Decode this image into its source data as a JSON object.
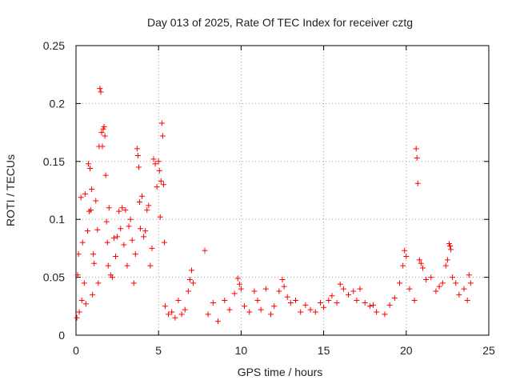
{
  "chart_data": {
    "type": "scatter",
    "title": "Day 013 of 2025, Rate Of TEC Index for receiver cztg",
    "xlabel": "GPS time / hours",
    "ylabel": "ROTI / TECUs",
    "xlim": [
      0,
      25
    ],
    "ylim": [
      0,
      0.25
    ],
    "xticks": [
      "0",
      "5",
      "10",
      "15",
      "20",
      "25"
    ],
    "yticks": [
      "0",
      "0.05",
      "0.1",
      "0.15",
      "0.2",
      "0.25"
    ],
    "grid": true,
    "marker": "+",
    "color": "#ff0000",
    "series": [
      {
        "name": "",
        "points": [
          [
            0.05,
            0.015
          ],
          [
            0.1,
            0.052
          ],
          [
            0.15,
            0.07
          ],
          [
            0.2,
            0.02
          ],
          [
            0.3,
            0.119
          ],
          [
            0.35,
            0.03
          ],
          [
            0.4,
            0.08
          ],
          [
            0.5,
            0.045
          ],
          [
            0.55,
            0.122
          ],
          [
            0.6,
            0.027
          ],
          [
            0.7,
            0.09
          ],
          [
            0.75,
            0.148
          ],
          [
            0.8,
            0.107
          ],
          [
            0.85,
            0.144
          ],
          [
            0.9,
            0.108
          ],
          [
            0.95,
            0.126
          ],
          [
            1.0,
            0.035
          ],
          [
            1.05,
            0.07
          ],
          [
            1.1,
            0.062
          ],
          [
            1.2,
            0.116
          ],
          [
            1.3,
            0.091
          ],
          [
            1.35,
            0.045
          ],
          [
            1.4,
            0.163
          ],
          [
            1.45,
            0.213
          ],
          [
            1.5,
            0.21
          ],
          [
            1.55,
            0.175
          ],
          [
            1.6,
            0.163
          ],
          [
            1.65,
            0.178
          ],
          [
            1.7,
            0.18
          ],
          [
            1.75,
            0.172
          ],
          [
            1.8,
            0.138
          ],
          [
            1.85,
            0.098
          ],
          [
            1.9,
            0.08
          ],
          [
            1.95,
            0.06
          ],
          [
            2.0,
            0.11
          ],
          [
            2.1,
            0.052
          ],
          [
            2.2,
            0.05
          ],
          [
            2.3,
            0.084
          ],
          [
            2.4,
            0.068
          ],
          [
            2.5,
            0.085
          ],
          [
            2.6,
            0.107
          ],
          [
            2.7,
            0.092
          ],
          [
            2.8,
            0.11
          ],
          [
            2.9,
            0.078
          ],
          [
            3.0,
            0.108
          ],
          [
            3.1,
            0.06
          ],
          [
            3.2,
            0.094
          ],
          [
            3.3,
            0.1
          ],
          [
            3.4,
            0.082
          ],
          [
            3.5,
            0.045
          ],
          [
            3.6,
            0.07
          ],
          [
            3.7,
            0.161
          ],
          [
            3.75,
            0.155
          ],
          [
            3.8,
            0.145
          ],
          [
            3.85,
            0.115
          ],
          [
            3.9,
            0.092
          ],
          [
            4.0,
            0.12
          ],
          [
            4.1,
            0.085
          ],
          [
            4.2,
            0.09
          ],
          [
            4.3,
            0.108
          ],
          [
            4.4,
            0.112
          ],
          [
            4.5,
            0.06
          ],
          [
            4.6,
            0.075
          ],
          [
            4.7,
            0.152
          ],
          [
            4.8,
            0.148
          ],
          [
            4.9,
            0.128
          ],
          [
            5.0,
            0.15
          ],
          [
            5.05,
            0.142
          ],
          [
            5.1,
            0.102
          ],
          [
            5.15,
            0.133
          ],
          [
            5.2,
            0.183
          ],
          [
            5.25,
            0.172
          ],
          [
            5.3,
            0.13
          ],
          [
            5.35,
            0.08
          ],
          [
            5.4,
            0.025
          ],
          [
            5.6,
            0.018
          ],
          [
            5.8,
            0.02
          ],
          [
            6.0,
            0.015
          ],
          [
            6.2,
            0.03
          ],
          [
            6.4,
            0.018
          ],
          [
            6.6,
            0.022
          ],
          [
            6.8,
            0.038
          ],
          [
            6.9,
            0.048
          ],
          [
            7.0,
            0.056
          ],
          [
            7.1,
            0.045
          ],
          [
            7.8,
            0.073
          ],
          [
            8.0,
            0.018
          ],
          [
            8.3,
            0.028
          ],
          [
            8.6,
            0.012
          ],
          [
            9.0,
            0.03
          ],
          [
            9.3,
            0.022
          ],
          [
            9.6,
            0.036
          ],
          [
            9.8,
            0.049
          ],
          [
            9.9,
            0.044
          ],
          [
            10.0,
            0.04
          ],
          [
            10.2,
            0.025
          ],
          [
            10.5,
            0.02
          ],
          [
            10.8,
            0.038
          ],
          [
            11.0,
            0.03
          ],
          [
            11.2,
            0.022
          ],
          [
            11.5,
            0.04
          ],
          [
            11.8,
            0.018
          ],
          [
            12.0,
            0.025
          ],
          [
            12.3,
            0.038
          ],
          [
            12.5,
            0.048
          ],
          [
            12.6,
            0.042
          ],
          [
            12.8,
            0.033
          ],
          [
            13.0,
            0.028
          ],
          [
            13.3,
            0.03
          ],
          [
            13.6,
            0.02
          ],
          [
            13.9,
            0.026
          ],
          [
            14.2,
            0.022
          ],
          [
            14.5,
            0.02
          ],
          [
            14.8,
            0.028
          ],
          [
            15.0,
            0.024
          ],
          [
            15.3,
            0.03
          ],
          [
            15.5,
            0.034
          ],
          [
            15.8,
            0.028
          ],
          [
            16.0,
            0.044
          ],
          [
            16.2,
            0.04
          ],
          [
            16.5,
            0.035
          ],
          [
            16.8,
            0.038
          ],
          [
            17.0,
            0.03
          ],
          [
            17.2,
            0.04
          ],
          [
            17.5,
            0.028
          ],
          [
            17.8,
            0.025
          ],
          [
            18.0,
            0.026
          ],
          [
            18.2,
            0.02
          ],
          [
            18.7,
            0.018
          ],
          [
            19.0,
            0.026
          ],
          [
            19.3,
            0.032
          ],
          [
            19.6,
            0.045
          ],
          [
            19.8,
            0.06
          ],
          [
            19.9,
            0.073
          ],
          [
            20.0,
            0.068
          ],
          [
            20.2,
            0.04
          ],
          [
            20.5,
            0.03
          ],
          [
            20.6,
            0.161
          ],
          [
            20.65,
            0.153
          ],
          [
            20.7,
            0.131
          ],
          [
            20.8,
            0.065
          ],
          [
            20.9,
            0.062
          ],
          [
            21.0,
            0.058
          ],
          [
            21.2,
            0.048
          ],
          [
            21.5,
            0.05
          ],
          [
            21.8,
            0.038
          ],
          [
            22.0,
            0.042
          ],
          [
            22.2,
            0.045
          ],
          [
            22.4,
            0.06
          ],
          [
            22.5,
            0.065
          ],
          [
            22.6,
            0.079
          ],
          [
            22.65,
            0.077
          ],
          [
            22.7,
            0.074
          ],
          [
            22.8,
            0.05
          ],
          [
            23.0,
            0.045
          ],
          [
            23.2,
            0.035
          ],
          [
            23.5,
            0.04
          ],
          [
            23.7,
            0.03
          ],
          [
            23.8,
            0.052
          ],
          [
            23.9,
            0.045
          ]
        ]
      }
    ]
  }
}
